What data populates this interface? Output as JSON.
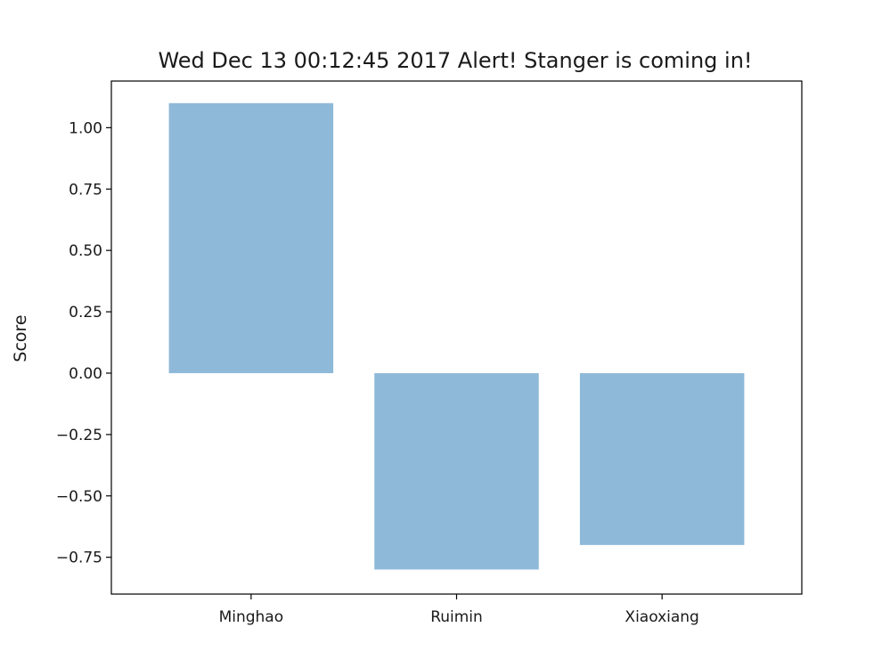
{
  "chart_data": {
    "type": "bar",
    "title": "Wed Dec 13 00:12:45 2017 Alert! Stanger is coming in!",
    "xlabel": "",
    "ylabel": "Score",
    "categories": [
      "Minghao",
      "Ruimin",
      "Xiaoxiang"
    ],
    "values": [
      1.1,
      -0.8,
      -0.7
    ],
    "ylim": [
      -0.9,
      1.19
    ],
    "yticks": [
      1.0,
      0.75,
      0.5,
      0.25,
      0.0,
      -0.25,
      -0.5,
      -0.75
    ],
    "ytick_labels": [
      "1.00",
      "0.75",
      "0.50",
      "0.25",
      "0.00",
      "−0.25",
      "−0.50",
      "−0.75"
    ],
    "bar_color": "#8fb9d8",
    "grid": false,
    "legend": "none"
  }
}
